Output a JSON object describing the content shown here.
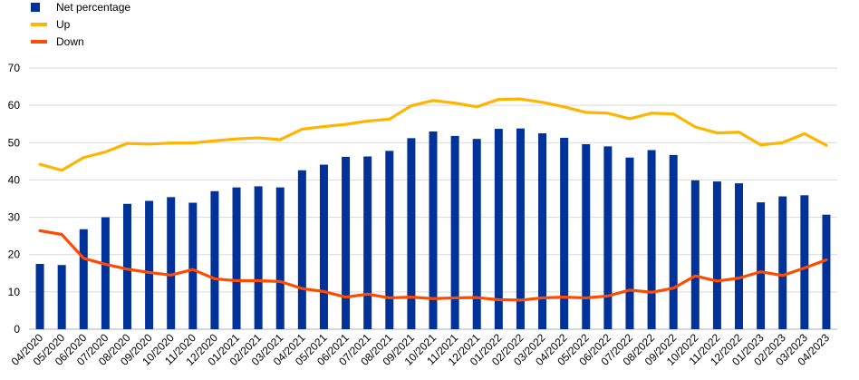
{
  "chart_data": {
    "type": "bar",
    "categories": [
      "04/2020",
      "05/2020",
      "06/2020",
      "07/2020",
      "08/2020",
      "09/2020",
      "10/2020",
      "11/2020",
      "12/2020",
      "01/2021",
      "02/2021",
      "03/2021",
      "04/2021",
      "05/2021",
      "06/2021",
      "07/2021",
      "08/2021",
      "09/2021",
      "10/2021",
      "11/2021",
      "12/2021",
      "01/2022",
      "02/2022",
      "03/2022",
      "04/2022",
      "05/2022",
      "06/2022",
      "07/2022",
      "08/2022",
      "09/2022",
      "10/2022",
      "11/2022",
      "12/2022",
      "01/2023",
      "02/2023",
      "03/2023",
      "04/2023"
    ],
    "series": [
      {
        "name": "Net percentage",
        "type": "bar",
        "color": "#003299",
        "values": [
          17.5,
          17.2,
          26.8,
          30.0,
          33.6,
          34.4,
          35.4,
          33.9,
          37.0,
          38.0,
          38.3,
          38.0,
          42.6,
          44.1,
          46.2,
          46.3,
          47.8,
          51.2,
          53.0,
          51.8,
          51.0,
          53.7,
          53.8,
          52.5,
          51.3,
          49.6,
          49.0,
          46.0,
          48.0,
          46.7,
          39.9,
          39.6,
          39.1,
          34.0,
          35.6,
          35.9,
          30.7
        ]
      },
      {
        "name": "Up",
        "type": "line",
        "color": "#FFB400",
        "values": [
          44.2,
          42.6,
          46.0,
          47.5,
          49.8,
          49.6,
          49.9,
          49.9,
          50.5,
          51.0,
          51.3,
          50.8,
          53.6,
          54.3,
          54.9,
          55.8,
          56.3,
          59.9,
          61.3,
          60.6,
          59.6,
          61.6,
          61.7,
          60.8,
          59.6,
          58.1,
          57.9,
          56.4,
          57.9,
          57.7,
          54.2,
          52.6,
          52.8,
          49.4,
          50.0,
          52.4,
          49.3
        ]
      },
      {
        "name": "Down",
        "type": "line",
        "color": "#FF4B00",
        "values": [
          26.4,
          25.4,
          19.0,
          17.4,
          16.1,
          15.2,
          14.5,
          16.0,
          13.5,
          13.0,
          13.0,
          12.8,
          10.9,
          10.1,
          8.6,
          9.4,
          8.4,
          8.6,
          8.2,
          8.4,
          8.5,
          7.9,
          7.8,
          8.4,
          8.6,
          8.4,
          8.9,
          10.5,
          9.9,
          11.0,
          14.3,
          12.9,
          13.7,
          15.4,
          14.4,
          16.4,
          18.6
        ]
      }
    ],
    "ylim": [
      0,
      70
    ],
    "yticks": [
      0,
      10,
      20,
      30,
      40,
      50,
      60,
      70
    ],
    "grid": true,
    "legend_position": "top-left"
  }
}
